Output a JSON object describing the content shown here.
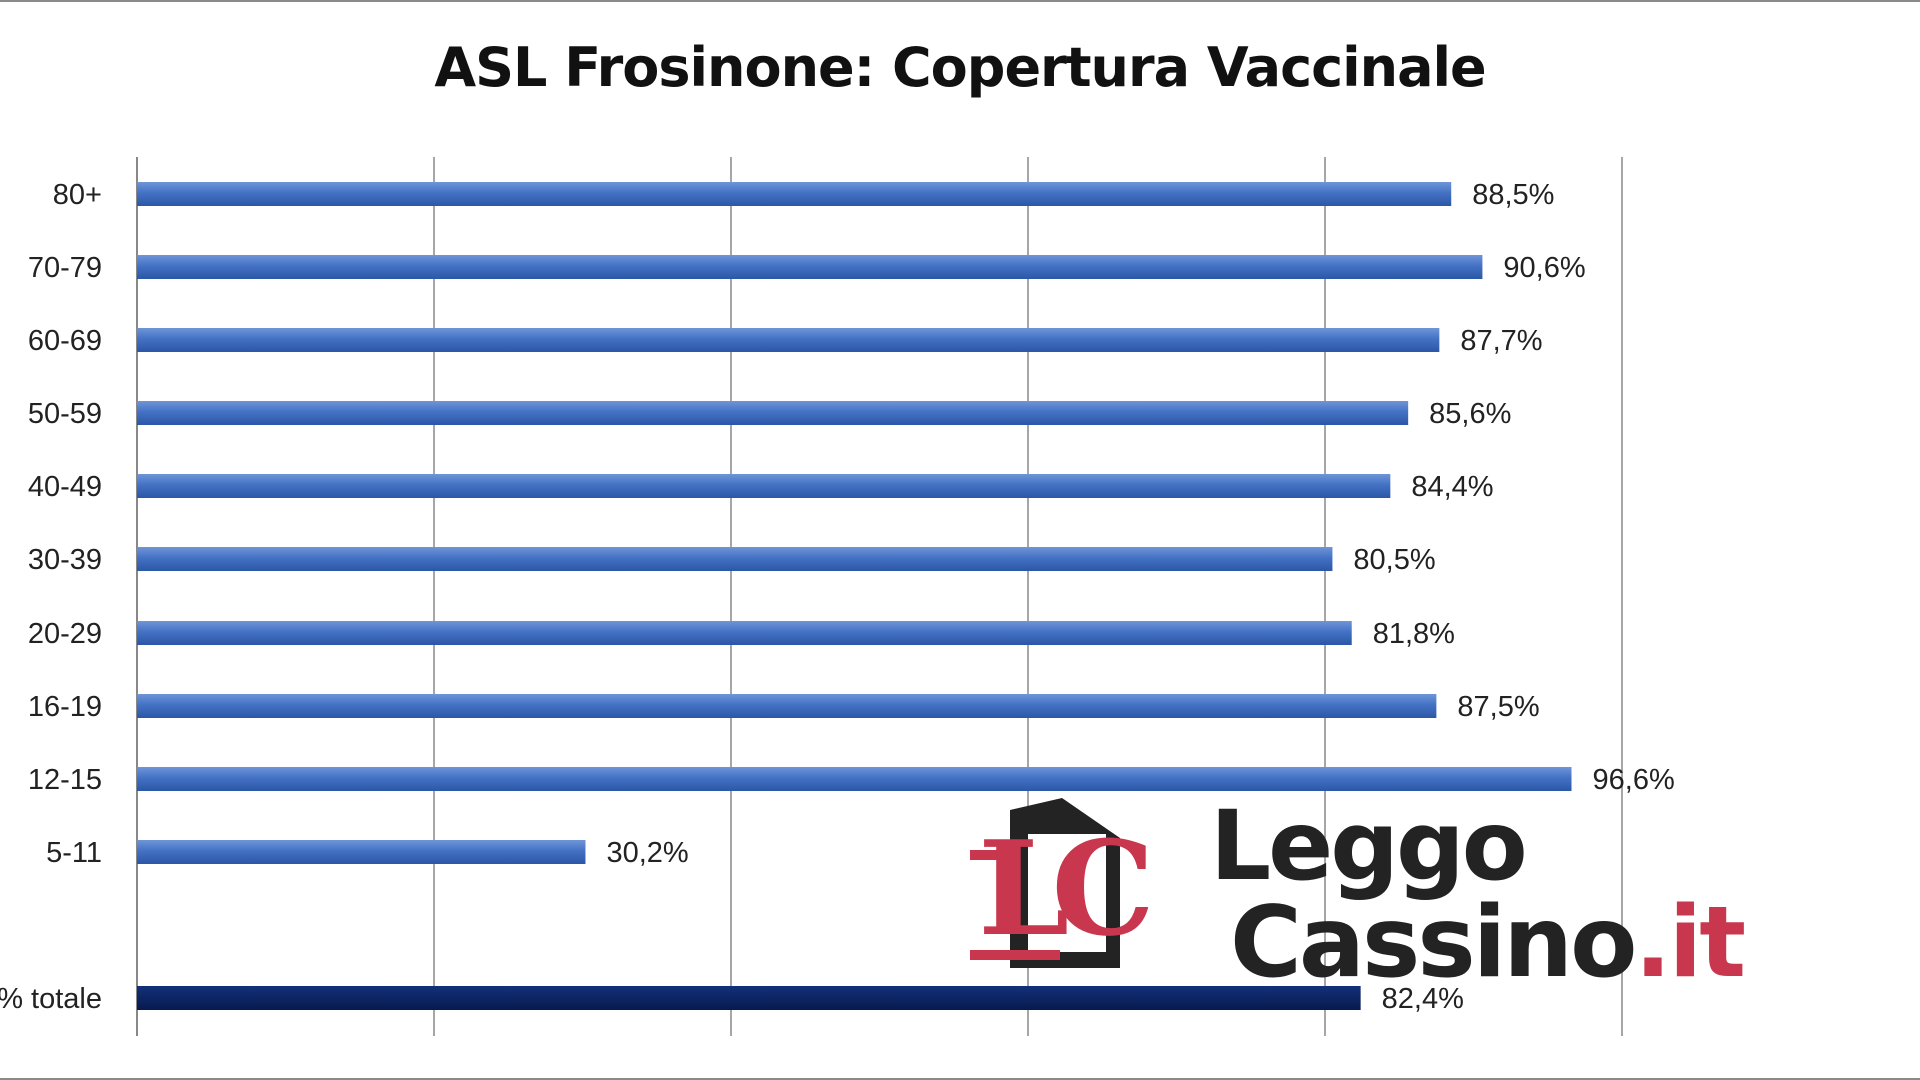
{
  "chart_data": {
    "type": "bar",
    "orientation": "horizontal",
    "title": "ASL Frosinone: Copertura Vaccinale",
    "categories": [
      "80+",
      "70-79",
      "60-69",
      "50-59",
      "40-49",
      "30-39",
      "20-29",
      "16-19",
      "12-15",
      "5-11",
      "% totale"
    ],
    "values": [
      88.5,
      90.6,
      87.7,
      85.6,
      84.4,
      80.5,
      81.8,
      87.5,
      96.6,
      30.2,
      82.4
    ],
    "data_labels": [
      "88,5%",
      "90,6%",
      "87,7%",
      "85,6%",
      "84,4%",
      "80,5%",
      "81,8%",
      "87,5%",
      "96,6%",
      "30,2%",
      "82,4%"
    ],
    "xlim": [
      0,
      100
    ],
    "grid": true,
    "legend": "none",
    "colors": {
      "bar": "#4472c4",
      "bar_total": "#0a2160",
      "grid": "#888888"
    }
  },
  "watermark": {
    "logo_letters": "LC",
    "line1": "Leggo",
    "line2_main": "Cassino",
    "line2_suffix": ".it",
    "colors": {
      "red": "#c8374d",
      "dark": "#232323"
    }
  }
}
